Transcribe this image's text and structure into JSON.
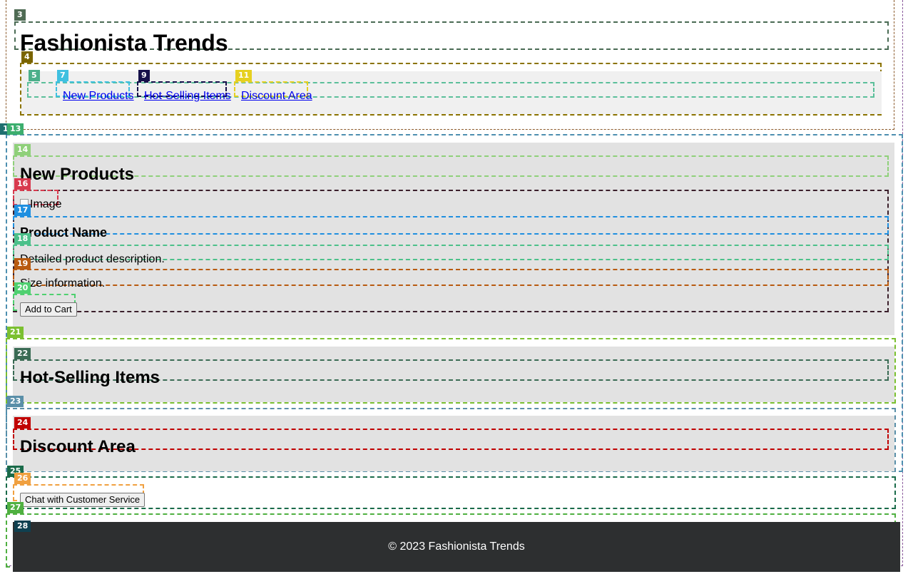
{
  "site": {
    "title": "Fashionista Trends"
  },
  "nav": {
    "items": [
      {
        "label": "New Products"
      },
      {
        "label": "Hot-Selling Items"
      },
      {
        "label": "Discount Area"
      }
    ]
  },
  "sections": {
    "new_products": {
      "heading": "New Products",
      "product": {
        "image_alt": "Image",
        "name": "Product Name",
        "description": "Detailed product description.",
        "size": "Size information.",
        "add_to_cart_label": "Add to Cart"
      }
    },
    "hot_selling": {
      "heading": "Hot-Selling Items"
    },
    "discount": {
      "heading": "Discount Area"
    }
  },
  "support": {
    "chat_label": "Chat with Customer Service"
  },
  "footer": {
    "text": "© 2023 Fashionista Trends"
  },
  "overlay_tags": [
    {
      "label": "1",
      "color": "#1f6f6f"
    },
    {
      "label": "3",
      "color": "#4f6b54"
    },
    {
      "label": "4",
      "color": "#7a6400"
    },
    {
      "label": "5",
      "color": "#4caf8a"
    },
    {
      "label": "7",
      "color": "#3fc0e0"
    },
    {
      "label": "9",
      "color": "#15104a"
    },
    {
      "label": "11",
      "color": "#e6d020"
    },
    {
      "label": "13",
      "color": "#3cae6e"
    },
    {
      "label": "14",
      "color": "#8fd07a"
    },
    {
      "label": "16",
      "color": "#d83a4e"
    },
    {
      "label": "17",
      "color": "#1f8fe0"
    },
    {
      "label": "18",
      "color": "#4cc08a"
    },
    {
      "label": "19",
      "color": "#b85a10"
    },
    {
      "label": "20",
      "color": "#4fd070"
    },
    {
      "label": "21",
      "color": "#7bc030"
    },
    {
      "label": "22",
      "color": "#3a6b54"
    },
    {
      "label": "23",
      "color": "#5a8fa8"
    },
    {
      "label": "24",
      "color": "#c00000"
    },
    {
      "label": "25",
      "color": "#1a6b4a"
    },
    {
      "label": "26",
      "color": "#f0a040"
    },
    {
      "label": "27",
      "color": "#4fb040"
    },
    {
      "label": "28",
      "color": "#0f4050"
    }
  ]
}
